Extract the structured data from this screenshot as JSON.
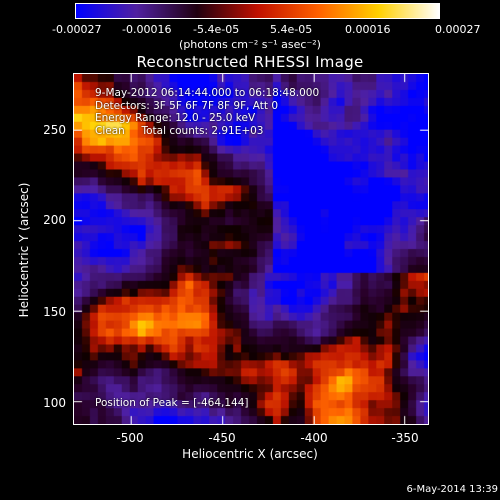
{
  "colorbar": {
    "tick_labels": [
      "-0.00027",
      "-0.00016",
      "-5.4e-05",
      "5.4e-05",
      "0.00016",
      "0.00027"
    ],
    "units": "(photons cm⁻² s⁻¹ asec⁻²)",
    "colors": [
      "#0000ff",
      "#5020a0",
      "#200010",
      "#c01000",
      "#ff6000",
      "#ffd000",
      "#ffffff"
    ]
  },
  "title": "Reconstructed RHESSI Image",
  "info": {
    "time_range": "9-May-2012 06:14:44.000 to 06:18:48.000",
    "detectors": "Detectors: 3F 5F 6F 7F 8F 9F, Att 0",
    "energy": "Energy Range: 12.0 - 25.0 keV",
    "clean": "Clean     Total counts: 2.91E+03",
    "peak": "Position of Peak = [-464,144]"
  },
  "axes": {
    "xlabel": "Heliocentric X (arcsec)",
    "ylabel": "Heliocentric Y (arcsec)",
    "x_ticks": [
      "-500",
      "-450",
      "-400",
      "-350"
    ],
    "y_ticks": [
      "100",
      "150",
      "200",
      "250"
    ]
  },
  "timestamp": "6-May-2014 13:39"
}
